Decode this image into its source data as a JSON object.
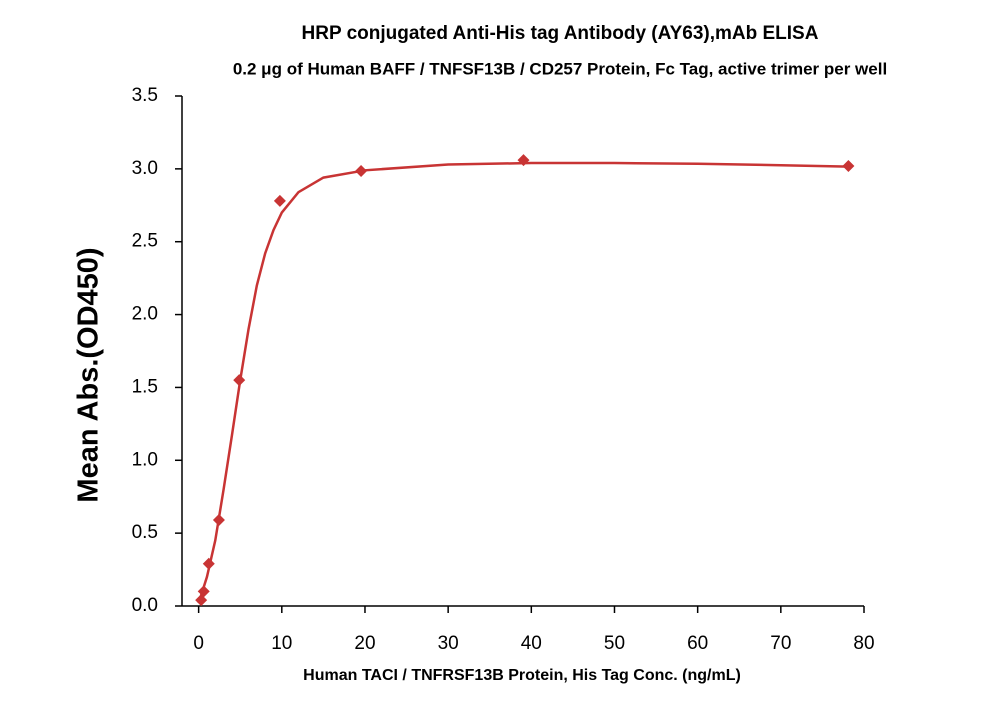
{
  "chart_data": {
    "type": "scatter",
    "title": "HRP conjugated Anti-His tag Antibody (AY63),mAb ELISA",
    "subtitle": "0.2 μg of Human BAFF / TNFSF13B / CD257 Protein, Fc Tag, active trimer per well",
    "x_label": "Human TACI / TNFRSF13B Protein, His Tag Conc. (ng/mL)",
    "y_label": "Mean Abs.(OD450)",
    "xlim": [
      -2,
      80
    ],
    "ylim": [
      0,
      3.5
    ],
    "xticks": [
      0,
      10,
      20,
      30,
      40,
      50,
      60,
      70,
      80
    ],
    "yticks": [
      {
        "value": 0,
        "label": "0.0"
      },
      0.5,
      {
        "value": 1,
        "label": "1.0"
      },
      1.5,
      {
        "value": 2,
        "label": "2.0"
      },
      2.5,
      {
        "value": 3,
        "label": "3.0"
      },
      3.5
    ],
    "series": [
      {
        "style": "marker",
        "color": "#c83434",
        "x": [
          0.305,
          0.61,
          1.22,
          2.44,
          4.88,
          9.77,
          19.53,
          39.06,
          78.125
        ],
        "values": [
          0.04,
          0.1,
          0.29,
          0.59,
          1.55,
          2.78,
          2.985,
          3.06,
          3.02
        ]
      },
      {
        "style": "line",
        "color": "#c83434",
        "x": [
          0,
          1,
          2,
          3,
          4,
          5,
          6,
          7,
          8,
          9,
          10,
          12,
          15,
          20,
          30,
          40,
          50,
          60,
          70,
          78.125
        ],
        "values": [
          0.02,
          0.2,
          0.45,
          0.8,
          1.17,
          1.55,
          1.9,
          2.2,
          2.42,
          2.58,
          2.7,
          2.84,
          2.94,
          2.99,
          3.03,
          3.04,
          3.04,
          3.035,
          3.025,
          3.015
        ]
      }
    ]
  }
}
